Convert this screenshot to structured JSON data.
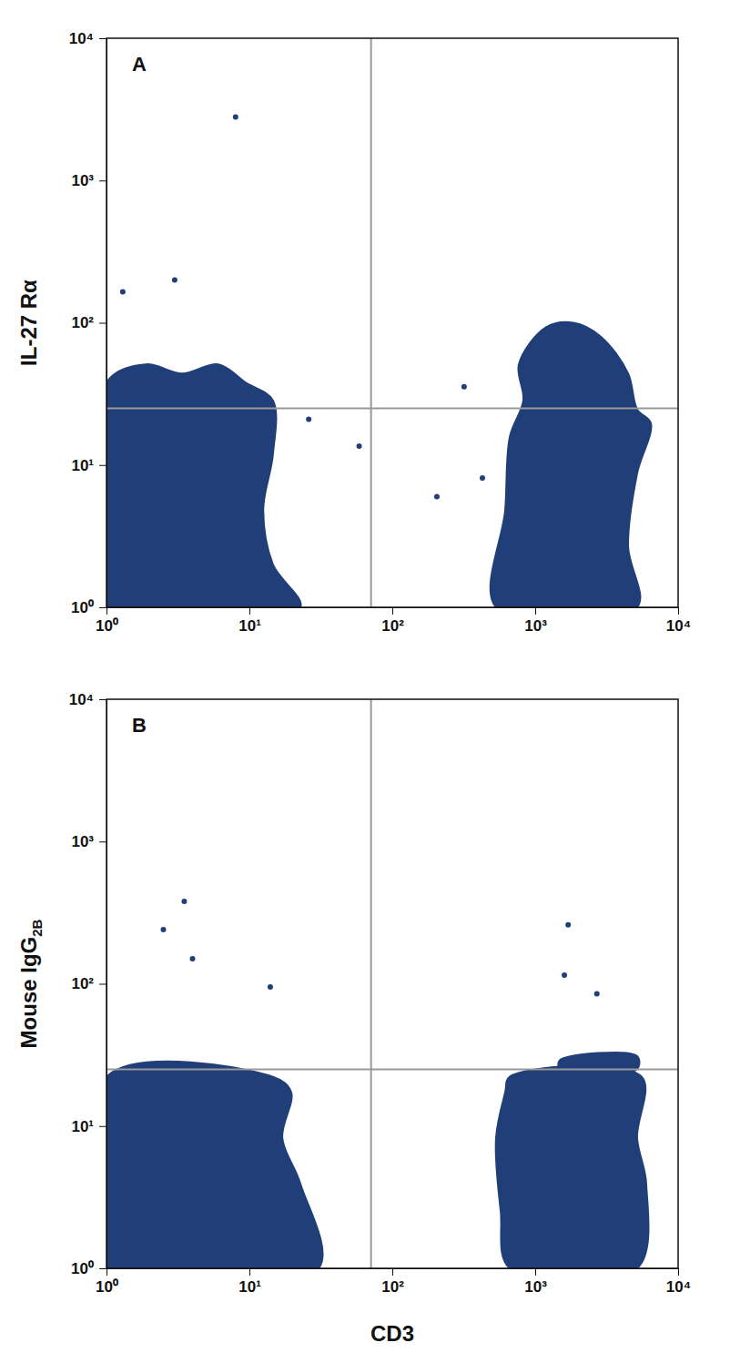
{
  "chart_data": [
    {
      "type": "density",
      "title": "A",
      "y_label": "IL-27 Rα",
      "log": true,
      "xlim": [
        1,
        10000
      ],
      "ylim": [
        1,
        10000
      ],
      "xticks": [
        {
          "value": 1,
          "label": "10⁰"
        },
        {
          "value": 10,
          "label": "10¹"
        },
        {
          "value": 100,
          "label": "10²"
        },
        {
          "value": 1000,
          "label": "10³"
        },
        {
          "value": 10000,
          "label": "10⁴"
        }
      ],
      "yticks": [
        {
          "value": 1,
          "label": "10⁰"
        },
        {
          "value": 10,
          "label": "10¹"
        },
        {
          "value": 100,
          "label": "10²"
        },
        {
          "value": 1000,
          "label": "10³"
        },
        {
          "value": 10000,
          "label": "10⁴"
        }
      ],
      "color": "#203f78",
      "quadrant_gates": {
        "x": 71,
        "y": 25
      },
      "populations": [
        [
          [
            1,
            38
          ],
          [
            1.88,
            51
          ],
          [
            3.38,
            44
          ],
          [
            6.07,
            51
          ],
          [
            9.4,
            38
          ],
          [
            14.6,
            28.5
          ],
          [
            14.6,
            11.8
          ],
          [
            12.5,
            4.85
          ],
          [
            14.6,
            2
          ],
          [
            22.7,
            1
          ],
          [
            1,
            1
          ]
        ],
        [
          [
            768,
            51
          ],
          [
            1192,
            93
          ],
          [
            1852,
            100
          ],
          [
            2874,
            80
          ],
          [
            4466,
            44
          ],
          [
            5166,
            24.6
          ],
          [
            6442,
            19.7
          ],
          [
            5166,
            8.75
          ],
          [
            4466,
            2.69
          ],
          [
            5166,
            1
          ],
          [
            532,
            1
          ],
          [
            617,
            4.85
          ],
          [
            664,
            15.8
          ],
          [
            826,
            28.5
          ]
        ]
      ],
      "events": {
        "x": [
          8,
          3,
          1.3,
          26,
          58.6,
          205,
          318,
          427
        ],
        "y": [
          2800,
          200,
          165,
          21,
          13.6,
          6,
          35.5,
          8.1
        ]
      }
    },
    {
      "type": "density",
      "title": "B",
      "y_label": "Mouse IgG",
      "y_label_subscript": "2B",
      "x_label": "CD3",
      "log": true,
      "xlim": [
        1,
        10000
      ],
      "ylim": [
        1,
        10000
      ],
      "xticks": [
        {
          "value": 1,
          "label": "10⁰"
        },
        {
          "value": 10,
          "label": "10¹"
        },
        {
          "value": 100,
          "label": "10²"
        },
        {
          "value": 1000,
          "label": "10³"
        },
        {
          "value": 10000,
          "label": "10⁴"
        }
      ],
      "yticks": [
        {
          "value": 1,
          "label": "10⁰"
        },
        {
          "value": 10,
          "label": "10¹"
        },
        {
          "value": 100,
          "label": "10²"
        },
        {
          "value": 1000,
          "label": "10³"
        },
        {
          "value": 10000,
          "label": "10⁴"
        }
      ],
      "color": "#203f78",
      "quadrant_gates": {
        "x": 71,
        "y": 25
      },
      "populations": [
        [
          [
            1,
            22.2
          ],
          [
            14.6,
            22.2
          ],
          [
            19.6,
            17.3
          ],
          [
            17,
            8.26
          ],
          [
            22.7,
            3.95
          ],
          [
            30.5,
            1
          ],
          [
            1,
            1
          ]
        ],
        [
          [
            664,
            22.2
          ],
          [
            5560,
            22.2
          ],
          [
            5166,
            8.26
          ],
          [
            5980,
            3.95
          ],
          [
            5166,
            1
          ],
          [
            664,
            1
          ],
          [
            573,
            2.54
          ],
          [
            532,
            8.26
          ],
          [
            617,
            17.3
          ]
        ],
        [
          [
            1486,
            25.2
          ],
          [
            5166,
            25.2
          ],
          [
            5166,
            31
          ],
          [
            1486,
            29
          ]
        ]
      ],
      "events": {
        "x": [
          3.5,
          2.5,
          4,
          14,
          1700,
          1600,
          2700
        ],
        "y": [
          380,
          240,
          150,
          95,
          260,
          115,
          85
        ]
      }
    }
  ]
}
